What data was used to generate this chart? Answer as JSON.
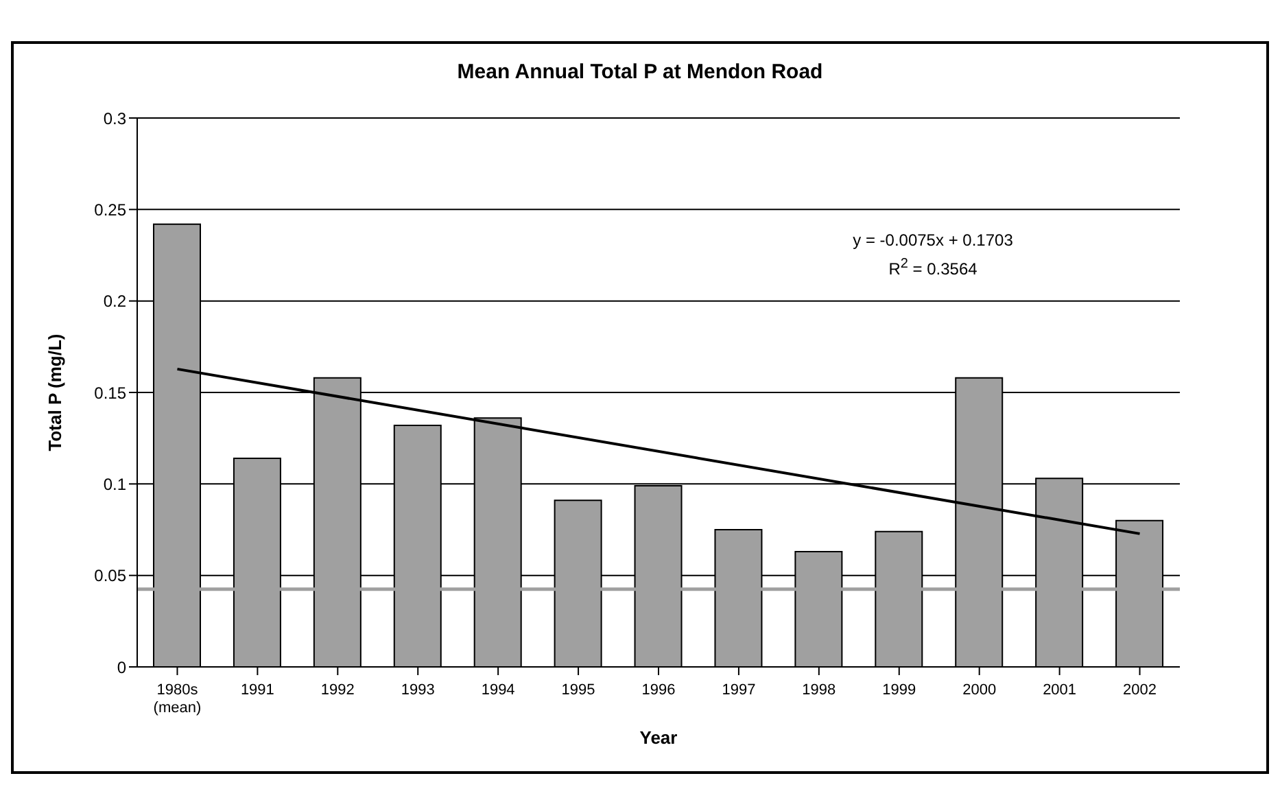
{
  "chart_data": {
    "type": "bar",
    "title": "Mean Annual Total P at Mendon Road",
    "xlabel": "Year",
    "ylabel": "Total P (mg/L)",
    "categories": [
      "1980s (mean)",
      "1991",
      "1992",
      "1993",
      "1994",
      "1995",
      "1996",
      "1997",
      "1998",
      "1999",
      "2000",
      "2001",
      "2002"
    ],
    "series": [
      {
        "color": "#a0a0a0",
        "values": [
          0.242,
          0.114,
          0.158,
          0.132,
          0.136,
          0.091,
          0.099,
          0.075,
          0.063,
          0.074,
          0.158,
          0.103,
          0.08
        ]
      },
      {
        "type": "line",
        "color": "#000000",
        "values": [
          0.1628,
          null,
          null,
          null,
          null,
          null,
          null,
          null,
          null,
          null,
          null,
          null,
          0.0728
        ]
      }
    ],
    "ylim": [
      0,
      0.3
    ],
    "yticks": [
      0,
      0.05,
      0.1,
      0.15,
      0.2,
      0.25,
      0.3
    ],
    "grid": "y",
    "legend": false,
    "marker": "none",
    "ref_lines": [
      {
        "axis": "y",
        "value": 0.0425,
        "color": "#a0a0a0"
      }
    ],
    "annotations": [
      "y = -0.0075x + 0.1703",
      "R$^{2}$ = 0.3564"
    ]
  }
}
